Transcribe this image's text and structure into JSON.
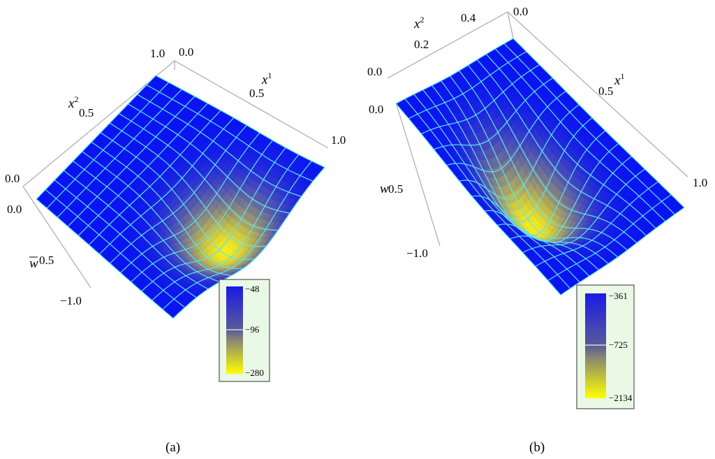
{
  "chart_data": [
    {
      "type": "surface3d",
      "caption": "(a)",
      "axes": {
        "x1": {
          "label": "x",
          "sup": "1",
          "ticks": [
            "0.0",
            "0.5",
            "1.0"
          ]
        },
        "x2": {
          "label": "x",
          "sup": "2",
          "ticks": [
            "0.0",
            "0.5",
            "1.0"
          ]
        },
        "w": {
          "label": "w",
          "ticks": [
            "0.0",
            "0.5",
            "1.0"
          ],
          "tick_prefix": "−"
        }
      },
      "surface": {
        "grid_lines": 13,
        "min_at": [
          0.55,
          0.8
        ],
        "depth": 1.0,
        "colors": [
          "#0a14f0",
          "#f5ec1e"
        ]
      },
      "legend": {
        "ticks": [
          "−48",
          "−96",
          "−280"
        ],
        "colors": [
          "#0000ff",
          "#8a8a8a",
          "#ffff00"
        ]
      }
    },
    {
      "type": "surface3d",
      "caption": "(b)",
      "axes": {
        "x1": {
          "label": "x",
          "sup": "1",
          "ticks": [
            "0.5",
            "1.0"
          ]
        },
        "x2": {
          "label": "x",
          "sup": "2",
          "ticks": [
            "0.0",
            "0.2",
            "0.4"
          ]
        },
        "w": {
          "label": "w",
          "ticks": [
            "0.0",
            "0.5",
            "1.0"
          ],
          "tick_prefix": "−"
        }
      },
      "surface": {
        "grid_lines": 13,
        "min_at": [
          0.45,
          0.5
        ],
        "depth": 1.0,
        "colors": [
          "#0a14f0",
          "#f5ec1e"
        ]
      },
      "legend": {
        "ticks": [
          "−361",
          "−725",
          "−2134"
        ],
        "colors": [
          "#0000ff",
          "#8a8a8a",
          "#ffff00"
        ]
      }
    }
  ]
}
